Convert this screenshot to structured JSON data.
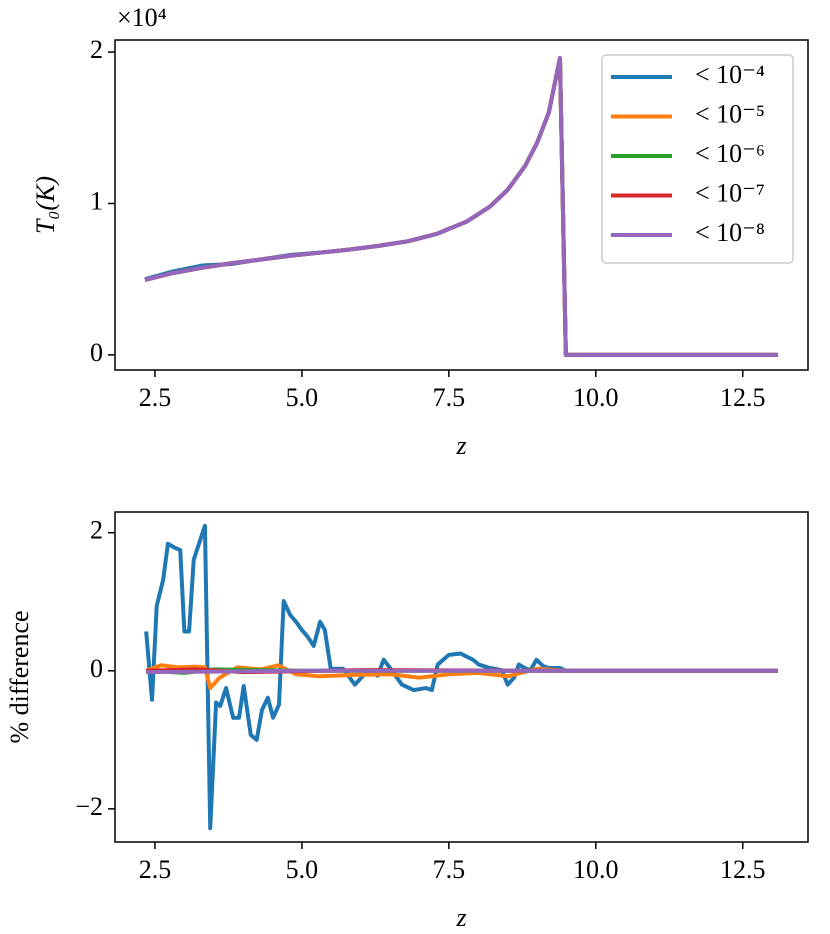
{
  "chart_data": [
    {
      "type": "line",
      "ylabel": "T₀(K)",
      "xlabel": "z",
      "offset_text": "×10⁴",
      "xlim": [
        1.82,
        13.61
      ],
      "xticks": [
        {
          "value": 2.5,
          "label": "2.5"
        },
        {
          "value": 5,
          "label": "5.0"
        },
        {
          "value": 7.5,
          "label": "7.5"
        },
        {
          "value": 10,
          "label": "10.0"
        },
        {
          "value": 12.5,
          "label": "12.5"
        }
      ],
      "ylim": [
        -0.1,
        2.08
      ],
      "yticks": [
        0,
        1,
        2
      ],
      "legend": "upper right",
      "x": [
        2.33,
        2.8,
        3.3,
        3.8,
        4.3,
        4.8,
        5.3,
        5.8,
        6.3,
        6.8,
        7.3,
        7.8,
        8.2,
        8.5,
        8.8,
        9.0,
        9.2,
        9.39,
        9.49,
        13.1
      ],
      "series": [
        {
          "name": "< 10⁻⁴",
          "color": "#1f77b4",
          "values": [
            0.5,
            0.55,
            0.59,
            0.6,
            0.63,
            0.66,
            0.675,
            0.695,
            0.72,
            0.75,
            0.8,
            0.88,
            0.98,
            1.09,
            1.25,
            1.4,
            1.6,
            1.96,
            0,
            0
          ]
        },
        {
          "name": "< 10⁻⁵",
          "color": "#ff7f0e",
          "values": [
            0.495,
            0.54,
            0.575,
            0.605,
            0.63,
            0.655,
            0.675,
            0.695,
            0.72,
            0.75,
            0.8,
            0.88,
            0.98,
            1.09,
            1.25,
            1.4,
            1.6,
            1.96,
            0,
            0
          ]
        },
        {
          "name": "< 10⁻⁶",
          "color": "#2ca02c",
          "values": [
            0.495,
            0.54,
            0.575,
            0.605,
            0.63,
            0.655,
            0.675,
            0.695,
            0.72,
            0.75,
            0.8,
            0.88,
            0.98,
            1.09,
            1.25,
            1.4,
            1.6,
            1.96,
            0,
            0
          ]
        },
        {
          "name": "< 10⁻⁷",
          "color": "#d62728",
          "values": [
            0.495,
            0.54,
            0.575,
            0.605,
            0.63,
            0.655,
            0.675,
            0.695,
            0.72,
            0.75,
            0.8,
            0.88,
            0.98,
            1.09,
            1.25,
            1.4,
            1.6,
            1.96,
            0,
            0
          ]
        },
        {
          "name": "< 10⁻⁸",
          "color": "#9467bd",
          "values": [
            0.495,
            0.54,
            0.575,
            0.605,
            0.63,
            0.655,
            0.675,
            0.695,
            0.72,
            0.75,
            0.8,
            0.88,
            0.98,
            1.09,
            1.25,
            1.4,
            1.6,
            1.96,
            0,
            0
          ]
        }
      ]
    },
    {
      "type": "line",
      "ylabel": "% difference",
      "xlabel": "z",
      "xlim": [
        1.82,
        13.61
      ],
      "xticks": [
        {
          "value": 2.5,
          "label": "2.5"
        },
        {
          "value": 5,
          "label": "5.0"
        },
        {
          "value": 7.5,
          "label": "7.5"
        },
        {
          "value": 10,
          "label": "10.0"
        },
        {
          "value": 12.5,
          "label": "12.5"
        }
      ],
      "ylim": [
        -2.48,
        2.3
      ],
      "yticks": [
        {
          "value": -2,
          "label": "−2"
        },
        0,
        2
      ],
      "series": [
        {
          "color": "#1f77b4",
          "x": [
            2.35,
            2.45,
            2.53,
            2.64,
            2.72,
            2.84,
            2.93,
            3.0,
            3.08,
            3.16,
            3.35,
            3.44,
            3.54,
            3.61,
            3.71,
            3.83,
            3.93,
            4.01,
            4.13,
            4.23,
            4.32,
            4.42,
            4.51,
            4.61,
            4.69,
            4.8,
            4.9,
            5.0,
            5.1,
            5.2,
            5.31,
            5.39,
            5.49,
            5.7,
            5.9,
            6.11,
            6.29,
            6.39,
            6.5,
            6.7,
            6.9,
            7.11,
            7.21,
            7.31,
            7.5,
            7.7,
            7.91,
            8.01,
            8.2,
            8.4,
            8.5,
            8.61,
            8.69,
            8.79,
            8.89,
            8.99,
            9.1,
            9.2,
            9.39,
            9.49,
            13.1
          ],
          "values": [
            0.57,
            -0.42,
            0.94,
            1.32,
            1.84,
            1.78,
            1.75,
            0.57,
            0.57,
            1.61,
            2.1,
            -2.28,
            -0.46,
            -0.51,
            -0.25,
            -0.68,
            -0.68,
            -0.22,
            -0.93,
            -1.0,
            -0.57,
            -0.39,
            -0.68,
            -0.49,
            1.01,
            0.81,
            0.71,
            0.59,
            0.49,
            0.36,
            0.71,
            0.59,
            0.03,
            0.03,
            -0.2,
            -0.01,
            -0.07,
            0.16,
            0.04,
            -0.2,
            -0.28,
            -0.25,
            -0.28,
            0.09,
            0.23,
            0.25,
            0.16,
            0.09,
            0.04,
            0.01,
            -0.2,
            -0.1,
            0.09,
            0.04,
            0.01,
            0.16,
            0.07,
            0.04,
            0.04,
            0,
            0
          ]
        },
        {
          "color": "#ff7f0e",
          "x": [
            2.35,
            2.6,
            2.9,
            3.2,
            3.35,
            3.44,
            3.6,
            3.9,
            4.3,
            4.6,
            4.9,
            5.3,
            5.9,
            6.5,
            7.0,
            7.5,
            8.0,
            8.5,
            9.0,
            9.49,
            13.1
          ],
          "values": [
            0,
            0.08,
            0.05,
            0.06,
            0.05,
            -0.25,
            -0.1,
            0.05,
            0.02,
            0.08,
            -0.05,
            -0.08,
            -0.06,
            -0.05,
            -0.1,
            -0.05,
            -0.03,
            -0.08,
            0.03,
            0,
            0
          ]
        },
        {
          "color": "#2ca02c",
          "x": [
            2.35,
            3.0,
            3.5,
            5.0,
            9.49,
            13.1
          ],
          "values": [
            0,
            -0.03,
            0.02,
            0,
            0,
            0
          ]
        },
        {
          "color": "#d62728",
          "x": [
            2.35,
            3.2,
            4.0,
            6.0,
            9.49,
            13.1
          ],
          "values": [
            0,
            0.02,
            -0.02,
            0.01,
            0,
            0
          ]
        },
        {
          "color": "#9467bd",
          "x": [
            2.35,
            5.0,
            9.49,
            13.1
          ],
          "values": [
            -0.02,
            0,
            0,
            0
          ]
        }
      ]
    }
  ]
}
